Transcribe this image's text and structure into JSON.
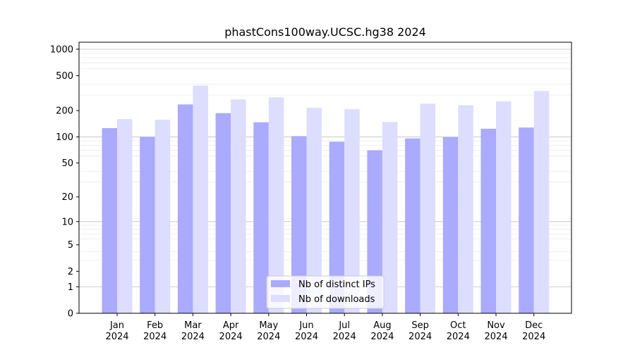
{
  "chart_data": {
    "type": "bar",
    "title": "phastCons100way.UCSC.hg38 2024",
    "xlabel": "",
    "ylabel": "",
    "y_scale": "symlog",
    "ylim": [
      0,
      1200
    ],
    "y_ticks": [
      0,
      1,
      2,
      5,
      10,
      20,
      50,
      100,
      200,
      500,
      1000
    ],
    "grid": true,
    "legend_position": "bottom-center",
    "categories": [
      [
        "Jan",
        "2024"
      ],
      [
        "Feb",
        "2024"
      ],
      [
        "Mar",
        "2024"
      ],
      [
        "Apr",
        "2024"
      ],
      [
        "May",
        "2024"
      ],
      [
        "Jun",
        "2024"
      ],
      [
        "Jul",
        "2024"
      ],
      [
        "Aug",
        "2024"
      ],
      [
        "Sep",
        "2024"
      ],
      [
        "Oct",
        "2024"
      ],
      [
        "Nov",
        "2024"
      ],
      [
        "Dec",
        "2024"
      ]
    ],
    "series": [
      {
        "name": "Nb of distinct IPs",
        "color": "#aaaaff",
        "values": [
          126,
          100,
          235,
          187,
          147,
          102,
          88,
          70,
          96,
          99,
          124,
          128
        ]
      },
      {
        "name": "Nb of downloads",
        "color": "#ddddff",
        "values": [
          160,
          157,
          385,
          268,
          283,
          215,
          207,
          148,
          240,
          230,
          255,
          335
        ]
      }
    ]
  }
}
